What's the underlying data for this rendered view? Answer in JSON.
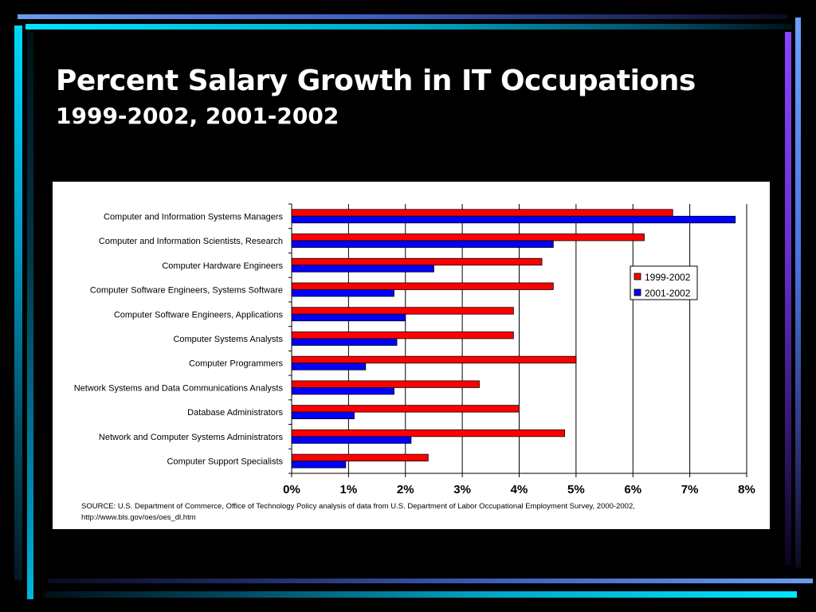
{
  "slide": {
    "title": "Percent Salary Growth in IT Occupations",
    "subtitle": "1999-2002, 2001-2002",
    "source_line1": "SOURCE: U.S. Department of Commerce, Office of Technology Policy analysis of data from U.S. Department of Labor Occupational Employment Survey, 2000-2002,",
    "source_line2": "http://www.bls.gov/oes/oes_dl.htm"
  },
  "colors": {
    "background": "#000000",
    "series_1999_2002": "#ff0000",
    "series_2001_2002": "#0000ff"
  },
  "chart_data": {
    "type": "bar",
    "orientation": "horizontal",
    "categories": [
      "Computer and Information Systems Managers",
      "Computer and Information Scientists, Research",
      "Computer Hardware Engineers",
      "Computer Software Engineers, Systems Software",
      "Computer Software Engineers, Applications",
      "Computer Systems Analysts",
      "Computer Programmers",
      "Network Systems and Data Communications Analysts",
      "Database Administrators",
      "Network and Computer Systems Administrators",
      "Computer Support Specialists"
    ],
    "series": [
      {
        "name": "1999-2002",
        "color": "#ff0000",
        "values": [
          6.7,
          6.2,
          4.4,
          4.6,
          3.9,
          3.9,
          5.0,
          3.3,
          4.0,
          4.8,
          2.4
        ]
      },
      {
        "name": "2001-2002",
        "color": "#0000ff",
        "values": [
          7.8,
          4.6,
          2.5,
          1.8,
          2.0,
          1.85,
          1.3,
          1.8,
          1.1,
          2.1,
          0.95
        ]
      }
    ],
    "xlim": [
      0,
      8
    ],
    "xticks": [
      "0%",
      "1%",
      "2%",
      "3%",
      "4%",
      "5%",
      "6%",
      "7%",
      "8%"
    ],
    "xlabel": "",
    "ylabel": "",
    "grid": true,
    "legend": "right"
  }
}
